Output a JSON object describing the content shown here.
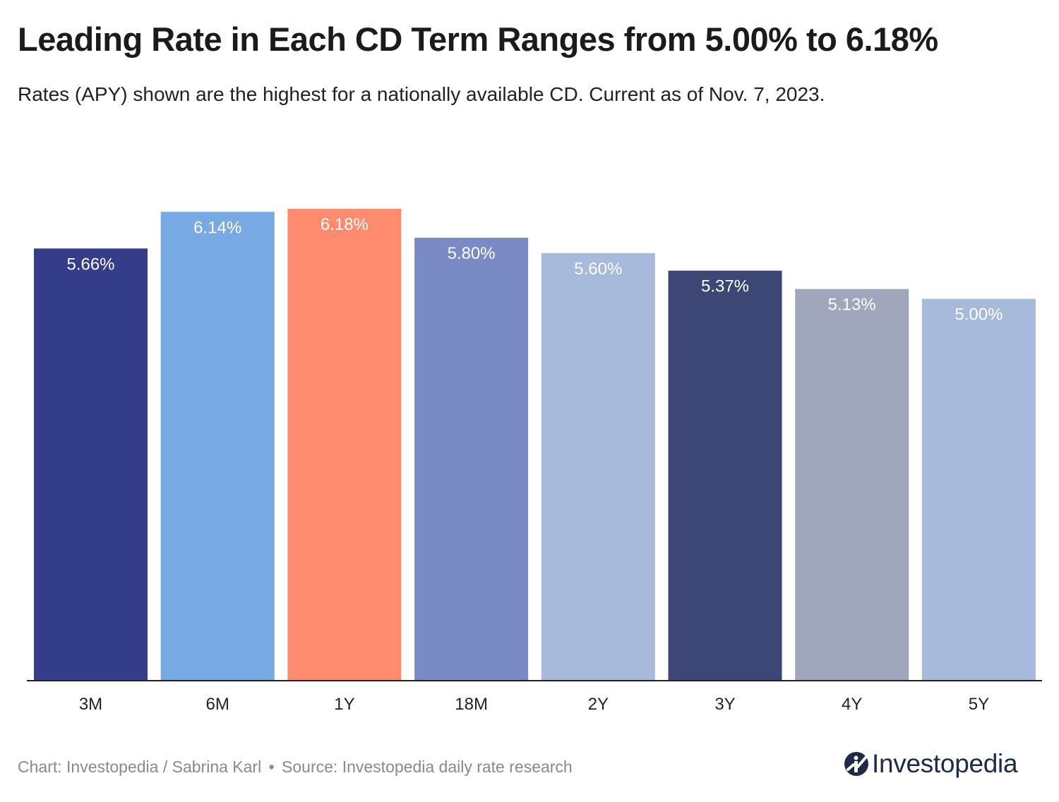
{
  "title": "Leading Rate in Each CD Term Ranges from 5.00% to 6.18%",
  "subtitle": "Rates (APY) shown are the highest for a nationally available CD. Current as of Nov. 7, 2023.",
  "footer": {
    "credit": "Chart: Investopedia / Sabrina Karl",
    "separator": "•",
    "source": "Source: Investopedia daily rate research"
  },
  "brand": {
    "name": "Investopedia",
    "icon": "investopedia-logo-icon",
    "color": "#1f2a44"
  },
  "chart_data": {
    "type": "bar",
    "title": "Leading Rate in Each CD Term Ranges from 5.00% to 6.18%",
    "xlabel": "",
    "ylabel": "",
    "ylim": [
      0,
      6.18
    ],
    "grid": false,
    "legend": "none",
    "categories": [
      "3M",
      "6M",
      "1Y",
      "18M",
      "2Y",
      "3Y",
      "4Y",
      "5Y"
    ],
    "values": [
      5.66,
      6.14,
      6.18,
      5.8,
      5.6,
      5.37,
      5.13,
      5.0
    ],
    "labels": [
      "5.66%",
      "6.14%",
      "6.18%",
      "5.80%",
      "5.60%",
      "5.37%",
      "5.13%",
      "5.00%"
    ],
    "colors": [
      "#343d8a",
      "#77a9e3",
      "#ff8c6e",
      "#7a8ac4",
      "#a8badb",
      "#3c4775",
      "#a0a6bc",
      "#a8badb"
    ],
    "axis_color": "#222222",
    "label_color": "#ffffff",
    "tick_color": "#222222"
  }
}
